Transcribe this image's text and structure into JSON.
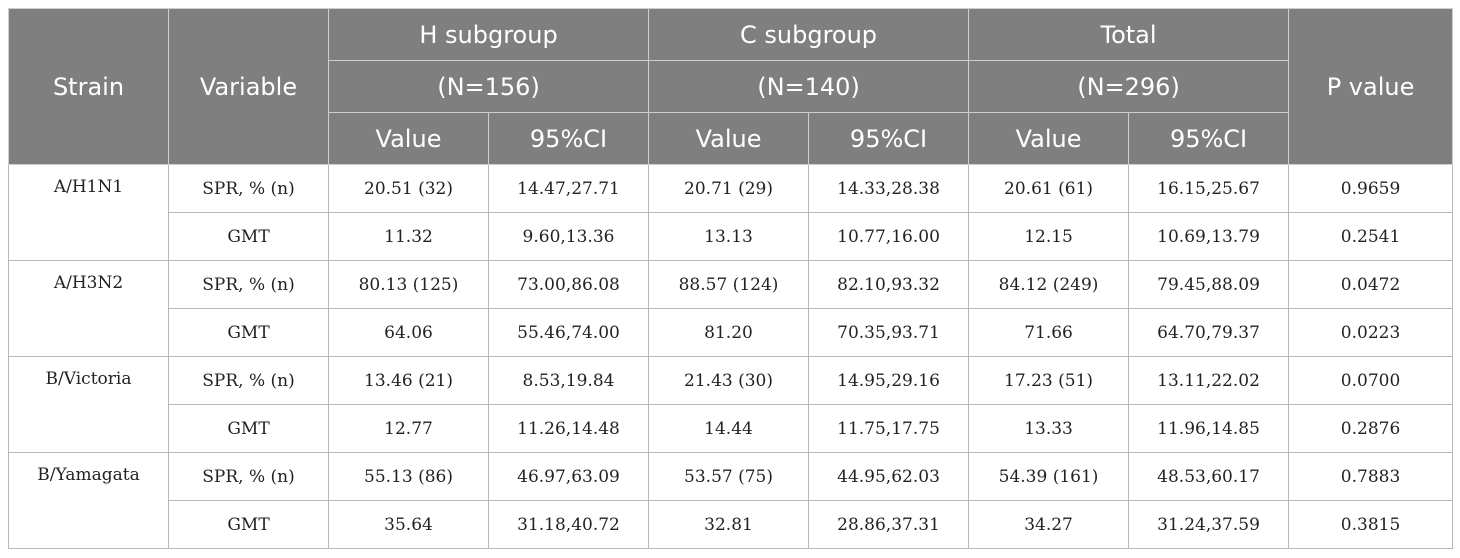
{
  "header": {
    "strain": "Strain",
    "variable": "Variable",
    "groups": [
      {
        "name": "H subgroup",
        "n": "(N=156)"
      },
      {
        "name": "C subgroup",
        "n": "(N=140)"
      },
      {
        "name": "Total",
        "n": "(N=296)"
      }
    ],
    "value_label": "Value",
    "ci_label": "95%CI",
    "p_value": "P value"
  },
  "strains": [
    {
      "name": "A/H1N1",
      "rows": [
        {
          "variable": "SPR, % (n)",
          "h_value": "20.51 (32)",
          "h_ci": "14.47,27.71",
          "c_value": "20.71 (29)",
          "c_ci": "14.33,28.38",
          "t_value": "20.61 (61)",
          "t_ci": "16.15,25.67",
          "p": "0.9659"
        },
        {
          "variable": "GMT",
          "h_value": "11.32",
          "h_ci": "9.60,13.36",
          "c_value": "13.13",
          "c_ci": "10.77,16.00",
          "t_value": "12.15",
          "t_ci": "10.69,13.79",
          "p": "0.2541"
        }
      ]
    },
    {
      "name": "A/H3N2",
      "rows": [
        {
          "variable": "SPR, % (n)",
          "h_value": "80.13 (125)",
          "h_ci": "73.00,86.08",
          "c_value": "88.57 (124)",
          "c_ci": "82.10,93.32",
          "t_value": "84.12 (249)",
          "t_ci": "79.45,88.09",
          "p": "0.0472"
        },
        {
          "variable": "GMT",
          "h_value": "64.06",
          "h_ci": "55.46,74.00",
          "c_value": "81.20",
          "c_ci": "70.35,93.71",
          "t_value": "71.66",
          "t_ci": "64.70,79.37",
          "p": "0.0223"
        }
      ]
    },
    {
      "name": "B/Victoria",
      "rows": [
        {
          "variable": "SPR, % (n)",
          "h_value": "13.46 (21)",
          "h_ci": "8.53,19.84",
          "c_value": "21.43 (30)",
          "c_ci": "14.95,29.16",
          "t_value": "17.23 (51)",
          "t_ci": "13.11,22.02",
          "p": "0.0700"
        },
        {
          "variable": "GMT",
          "h_value": "12.77",
          "h_ci": "11.26,14.48",
          "c_value": "14.44",
          "c_ci": "11.75,17.75",
          "t_value": "13.33",
          "t_ci": "11.96,14.85",
          "p": "0.2876"
        }
      ]
    },
    {
      "name": "B/Yamagata",
      "rows": [
        {
          "variable": "SPR, % (n)",
          "h_value": "55.13 (86)",
          "h_ci": "46.97,63.09",
          "c_value": "53.57 (75)",
          "c_ci": "44.95,62.03",
          "t_value": "54.39 (161)",
          "t_ci": "48.53,60.17",
          "p": "0.7883"
        },
        {
          "variable": "GMT",
          "h_value": "35.64",
          "h_ci": "31.18,40.72",
          "c_value": "32.81",
          "c_ci": "28.86,37.31",
          "t_value": "34.27",
          "t_ci": "31.24,37.59",
          "p": "0.3815"
        }
      ]
    }
  ]
}
